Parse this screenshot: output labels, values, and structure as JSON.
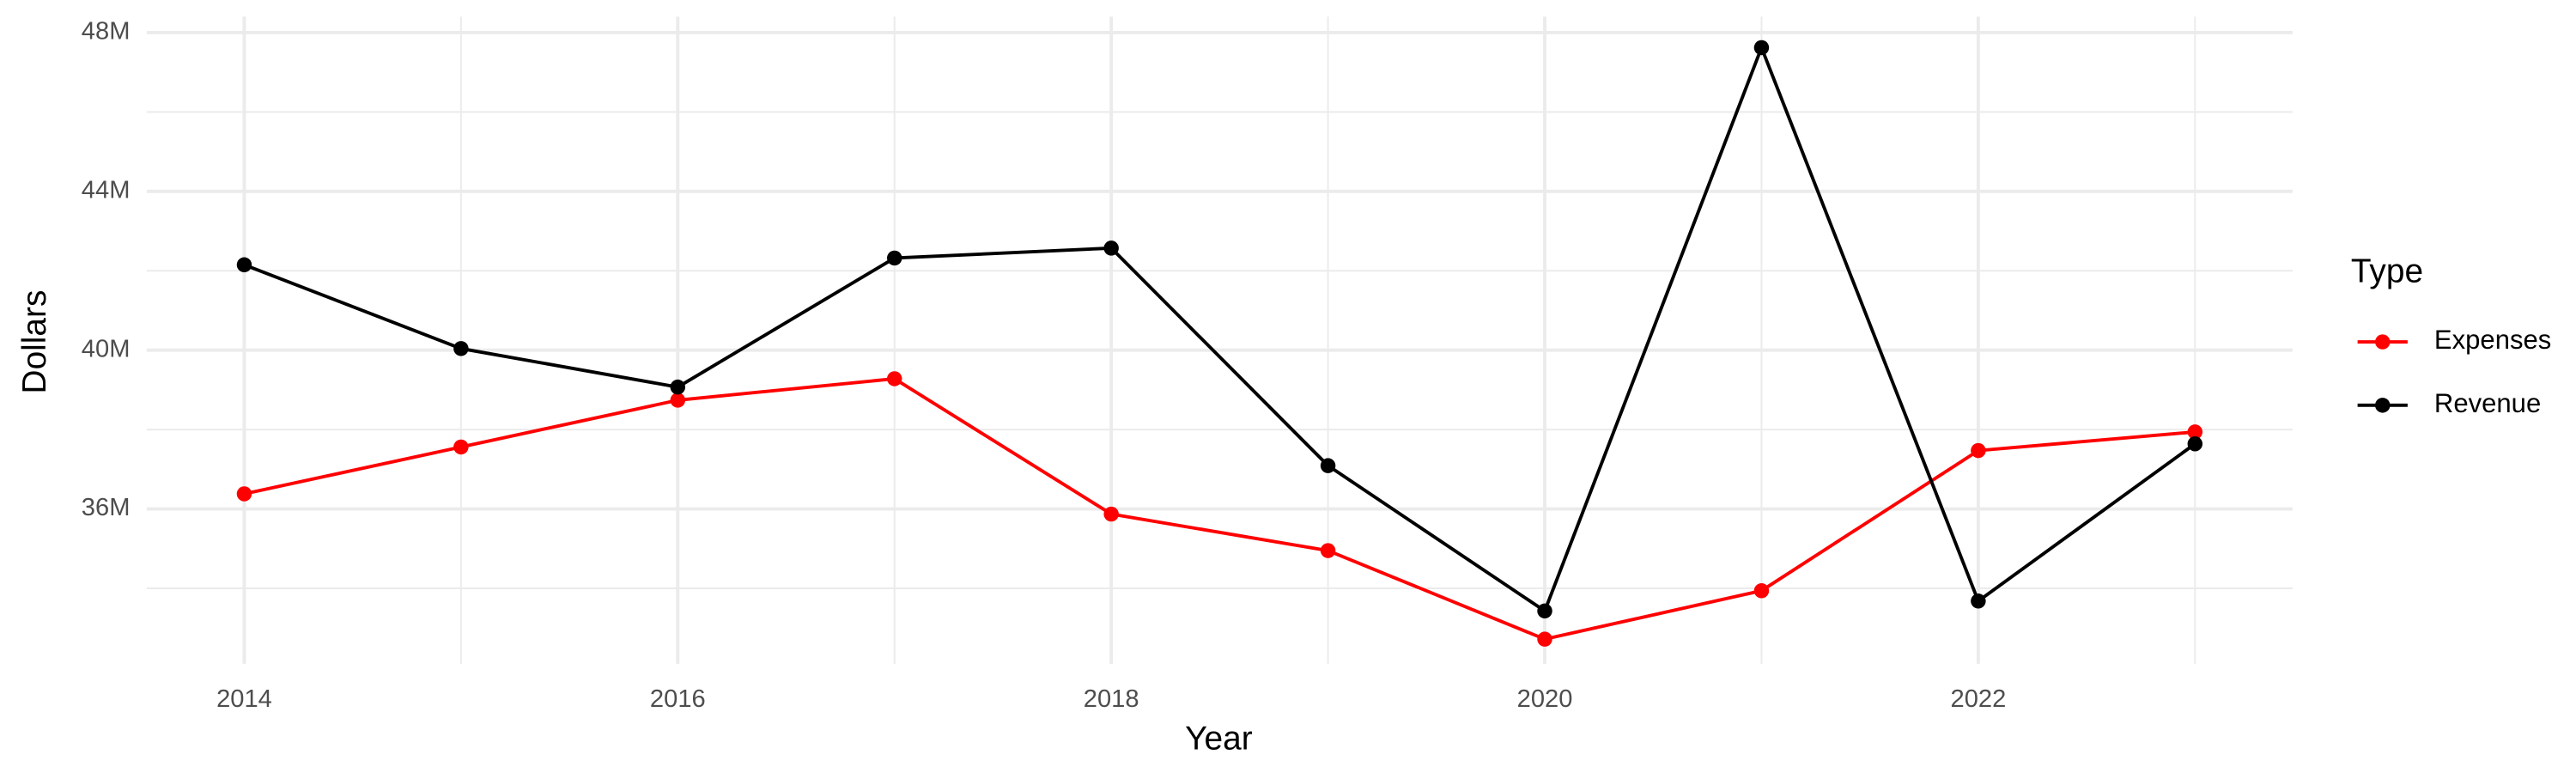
{
  "chart_data": {
    "type": "line",
    "x_label": "Year",
    "y_label": "Dollars",
    "legend_title": "Type",
    "legend_position": "right",
    "grid": true,
    "x": [
      2014,
      2015,
      2016,
      2017,
      2018,
      2019,
      2020,
      2021,
      2022,
      2023
    ],
    "series": [
      {
        "name": "Expenses",
        "color": "#ff0000",
        "values": [
          36380000,
          37560000,
          38740000,
          39280000,
          35870000,
          34950000,
          32720000,
          33940000,
          37470000,
          37940000
        ]
      },
      {
        "name": "Revenue",
        "color": "#000000",
        "values": [
          42150000,
          40040000,
          39070000,
          42320000,
          42570000,
          37090000,
          33430000,
          47620000,
          33680000,
          37640000
        ]
      }
    ],
    "xlim": [
      2013.55,
      2023.45
    ],
    "xticks": [
      2014,
      2016,
      2018,
      2020,
      2022
    ],
    "ylim": [
      32100000,
      48400000
    ],
    "yticks": [
      {
        "value": 36000000,
        "label": "36M"
      },
      {
        "value": 40000000,
        "label": "40M"
      },
      {
        "value": 44000000,
        "label": "44M"
      },
      {
        "value": 48000000,
        "label": "48M"
      }
    ]
  }
}
